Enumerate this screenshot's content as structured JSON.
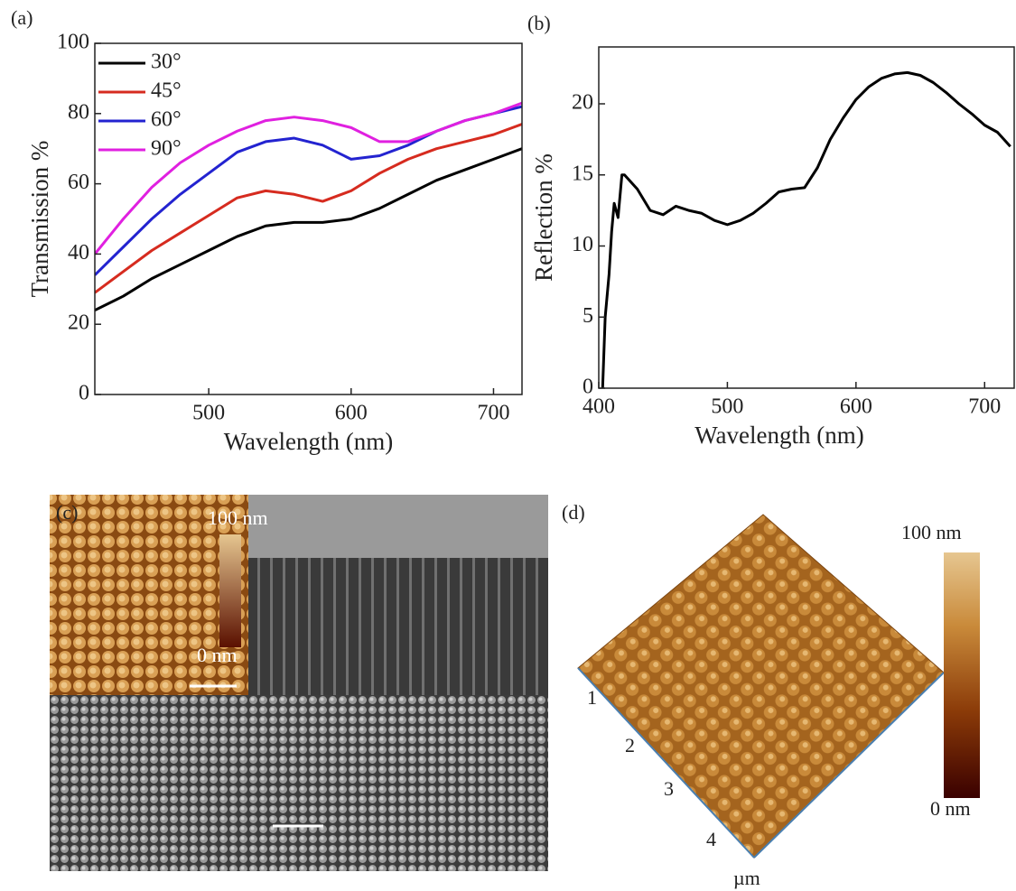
{
  "chart_data": [
    {
      "type": "line",
      "panel_label": "(a)",
      "xlabel": "Wavelength (nm)",
      "ylabel": "Transmission %",
      "x": [
        420,
        440,
        460,
        480,
        500,
        520,
        540,
        560,
        580,
        600,
        620,
        640,
        660,
        680,
        700,
        720
      ],
      "series": [
        {
          "name": "30°",
          "color": "#000000",
          "values": [
            24,
            28,
            33,
            37,
            41,
            45,
            48,
            49,
            49,
            50,
            53,
            57,
            61,
            64,
            67,
            70
          ]
        },
        {
          "name": "45°",
          "color": "#d62b1f",
          "values": [
            29,
            35,
            41,
            46,
            51,
            56,
            58,
            57,
            55,
            58,
            63,
            67,
            70,
            72,
            74,
            77
          ]
        },
        {
          "name": "60°",
          "color": "#2323d0",
          "values": [
            34,
            42,
            50,
            57,
            63,
            69,
            72,
            73,
            71,
            67,
            68,
            71,
            75,
            78,
            80,
            82
          ]
        },
        {
          "name": "90°",
          "color": "#e020e0",
          "values": [
            40,
            50,
            59,
            66,
            71,
            75,
            78,
            79,
            78,
            76,
            72,
            72,
            75,
            78,
            80,
            83
          ]
        }
      ],
      "xlim": [
        420,
        720
      ],
      "xticks": [
        500,
        600,
        700
      ],
      "ylim": [
        0,
        100
      ],
      "yticks": [
        0,
        20,
        40,
        60,
        80,
        100
      ],
      "legend": "upper left"
    },
    {
      "type": "line",
      "panel_label": "(b)",
      "xlabel": "Wavelength (nm)",
      "ylabel": "Reflection %",
      "x": [
        403,
        405,
        408,
        410,
        412,
        415,
        418,
        420,
        430,
        440,
        450,
        460,
        470,
        480,
        490,
        500,
        510,
        520,
        530,
        540,
        550,
        560,
        570,
        580,
        590,
        600,
        610,
        620,
        630,
        640,
        650,
        660,
        670,
        680,
        690,
        700,
        710,
        720
      ],
      "series": [
        {
          "color": "#000000",
          "values": [
            0,
            5,
            8,
            11,
            13,
            12,
            15,
            15,
            14,
            12.5,
            12.2,
            12.8,
            12.5,
            12.3,
            11.8,
            11.5,
            11.8,
            12.3,
            13,
            13.8,
            14,
            14.1,
            15.5,
            17.5,
            19,
            20.3,
            21.2,
            21.8,
            22.1,
            22.2,
            22,
            21.5,
            20.8,
            20,
            19.3,
            18.5,
            18,
            17
          ]
        }
      ],
      "xlim": [
        400,
        723
      ],
      "xticks": [
        400,
        500,
        600,
        700
      ],
      "ylim": [
        0,
        24
      ],
      "yticks": [
        0,
        5,
        10,
        15,
        20
      ]
    }
  ],
  "figure": {
    "panel_c": {
      "label": "(c)",
      "scale_max": "100 nm",
      "scale_min": "0 nm"
    },
    "panel_d": {
      "label": "(d)",
      "scale_max": "100 nm",
      "scale_min": "0 nm",
      "axis_ticks": [
        "1",
        "2",
        "3",
        "4"
      ],
      "axis_unit": "µm"
    }
  }
}
